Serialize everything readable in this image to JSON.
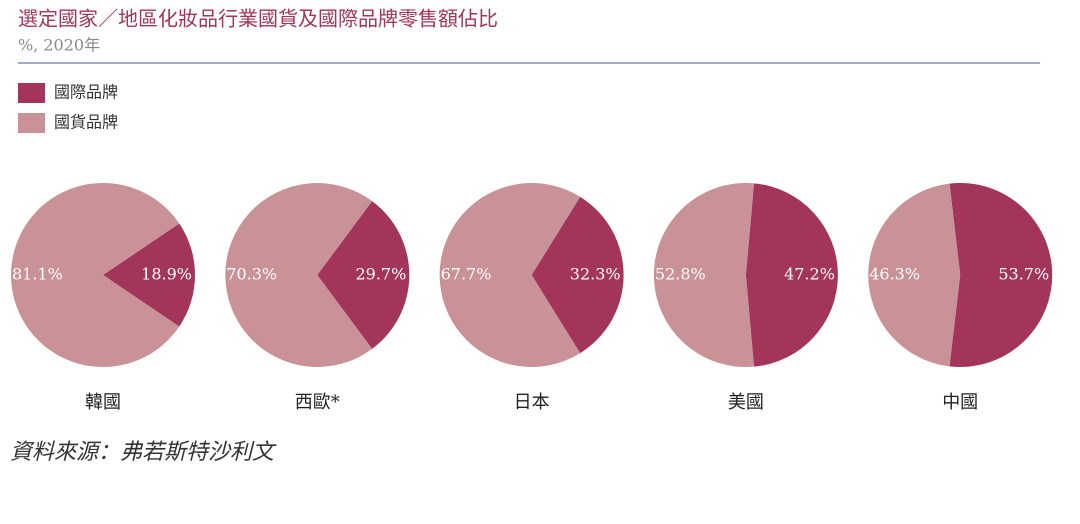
{
  "title": "選定國家／地區化妝品行業國貨及國際品牌零售額佔比",
  "subtitle": "%, 2020年",
  "legend": {
    "labels": [
      "國際品牌",
      "國貨品牌"
    ],
    "colors": [
      "#a3345a",
      "#c99297"
    ]
  },
  "source": "資料來源：弗若斯特沙利文",
  "chart_data": [
    {
      "type": "pie",
      "title": "韓國",
      "values": [
        18.9,
        81.1
      ],
      "value_labels": [
        "18.9%",
        "81.1%"
      ]
    },
    {
      "type": "pie",
      "title": "西歐*",
      "values": [
        29.7,
        70.3
      ],
      "value_labels": [
        "29.7%",
        "70.3%"
      ]
    },
    {
      "type": "pie",
      "title": "日本",
      "values": [
        32.3,
        67.7
      ],
      "value_labels": [
        "32.3%",
        "67.7%"
      ]
    },
    {
      "type": "pie",
      "title": "美國",
      "values": [
        47.2,
        52.8
      ],
      "value_labels": [
        "47.2%",
        "52.8%"
      ]
    },
    {
      "type": "pie",
      "title": "中國",
      "values": [
        53.7,
        46.3
      ],
      "value_labels": [
        "53.7%",
        "46.3%"
      ]
    }
  ]
}
